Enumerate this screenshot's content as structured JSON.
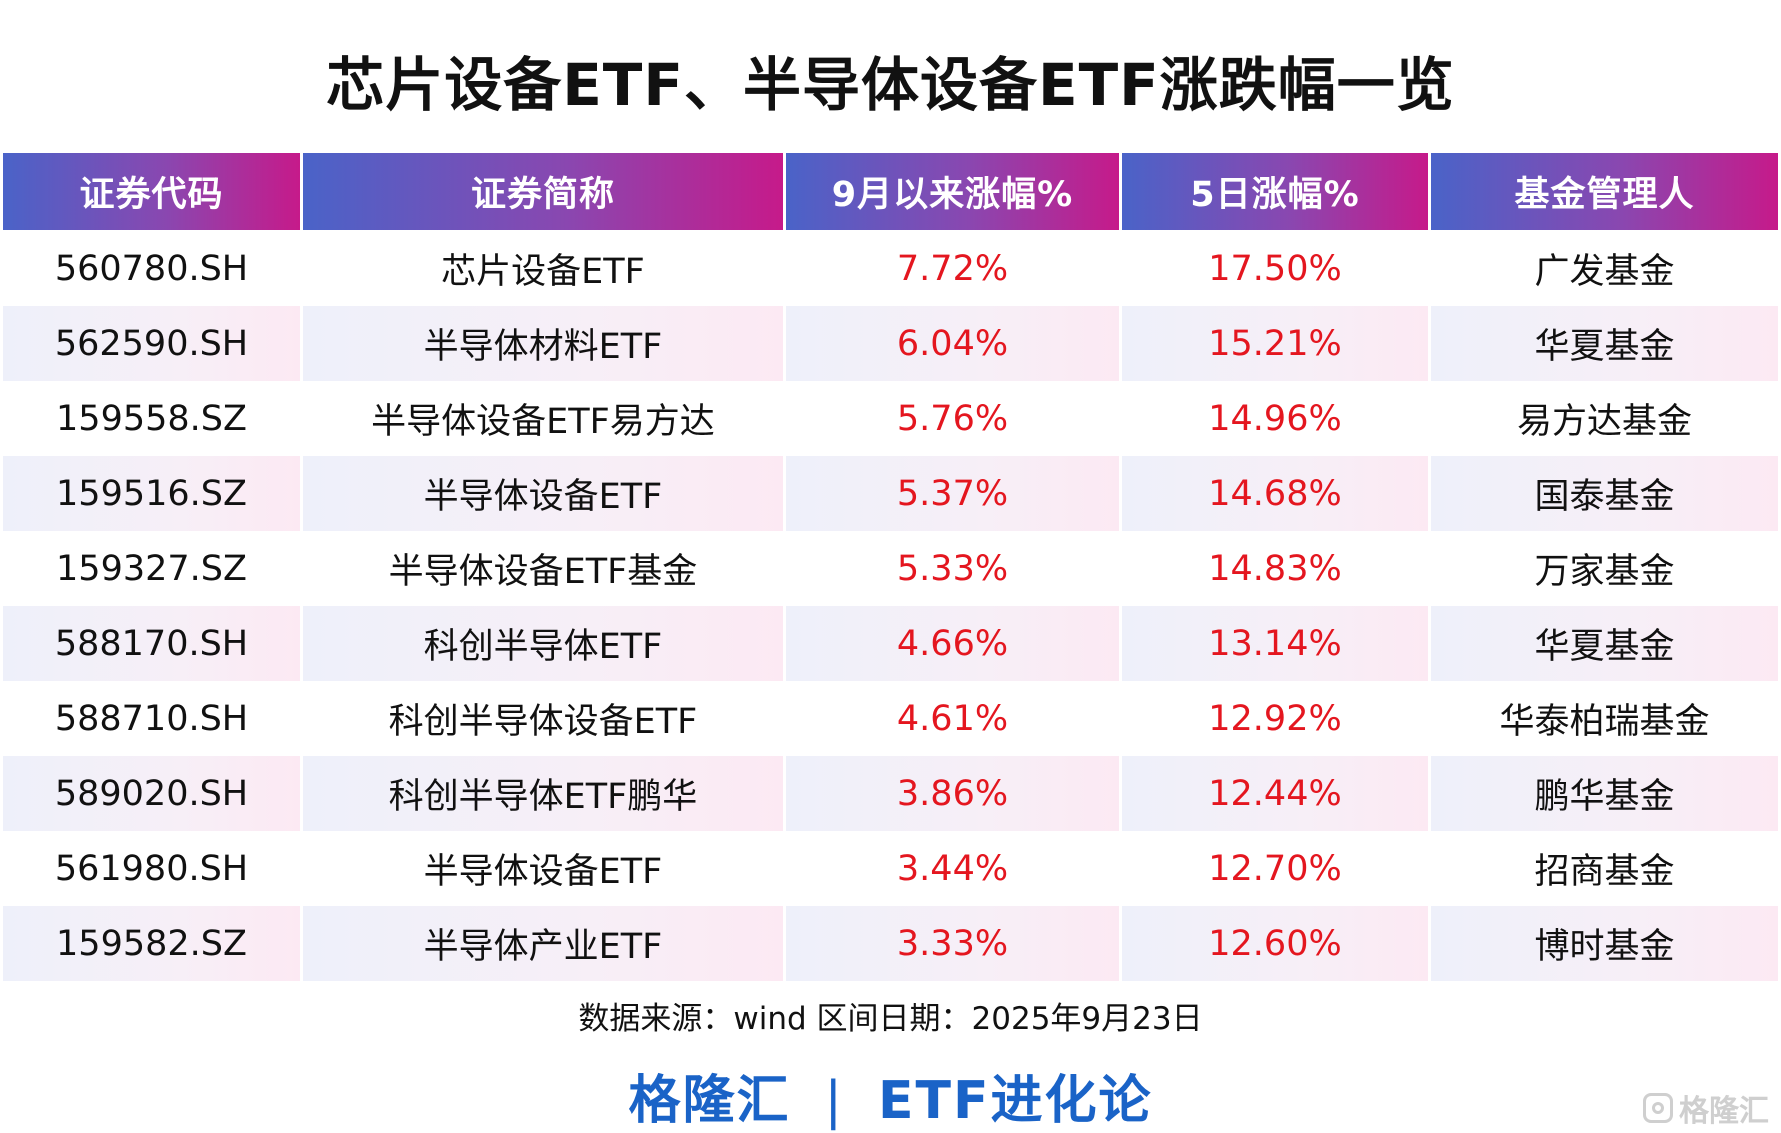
{
  "title": "芯片设备ETF、半导体设备ETF涨跌幅一览",
  "headers": [
    "证券代码",
    "证券简称",
    "9月以来涨幅%",
    "5日涨幅%",
    "基金管理人"
  ],
  "rows": [
    {
      "code": "560780.SH",
      "name": "芯片设备ETF",
      "mtd": "7.72%",
      "d5": "17.50%",
      "manager": "广发基金"
    },
    {
      "code": "562590.SH",
      "name": "半导体材料ETF",
      "mtd": "6.04%",
      "d5": "15.21%",
      "manager": "华夏基金"
    },
    {
      "code": "159558.SZ",
      "name": "半导体设备ETF易方达",
      "mtd": "5.76%",
      "d5": "14.96%",
      "manager": "易方达基金"
    },
    {
      "code": "159516.SZ",
      "name": "半导体设备ETF",
      "mtd": "5.37%",
      "d5": "14.68%",
      "manager": "国泰基金"
    },
    {
      "code": "159327.SZ",
      "name": "半导体设备ETF基金",
      "mtd": "5.33%",
      "d5": "14.83%",
      "manager": "万家基金"
    },
    {
      "code": "588170.SH",
      "name": "科创半导体ETF",
      "mtd": "4.66%",
      "d5": "13.14%",
      "manager": "华夏基金"
    },
    {
      "code": "588710.SH",
      "name": "科创半导体设备ETF",
      "mtd": "4.61%",
      "d5": "12.92%",
      "manager": "华泰柏瑞基金"
    },
    {
      "code": "589020.SH",
      "name": "科创半导体ETF鹏华",
      "mtd": "3.86%",
      "d5": "12.44%",
      "manager": "鹏华基金"
    },
    {
      "code": "561980.SH",
      "name": "半导体设备ETF",
      "mtd": "3.44%",
      "d5": "12.70%",
      "manager": "招商基金"
    },
    {
      "code": "159582.SZ",
      "name": "半导体产业ETF",
      "mtd": "3.33%",
      "d5": "12.60%",
      "manager": "博时基金"
    }
  ],
  "chart_data": {
    "type": "table",
    "title": "芯片设备ETF、半导体设备ETF涨跌幅一览",
    "columns": [
      "证券代码",
      "证券简称",
      "9月以来涨幅%",
      "5日涨幅%",
      "基金管理人"
    ],
    "cells": [
      [
        "560780.SH",
        "芯片设备ETF",
        7.72,
        17.5,
        "广发基金"
      ],
      [
        "562590.SH",
        "半导体材料ETF",
        6.04,
        15.21,
        "华夏基金"
      ],
      [
        "159558.SZ",
        "半导体设备ETF易方达",
        5.76,
        14.96,
        "易方达基金"
      ],
      [
        "159516.SZ",
        "半导体设备ETF",
        5.37,
        14.68,
        "国泰基金"
      ],
      [
        "159327.SZ",
        "半导体设备ETF基金",
        5.33,
        14.83,
        "万家基金"
      ],
      [
        "588170.SH",
        "科创半导体ETF",
        4.66,
        13.14,
        "华夏基金"
      ],
      [
        "588710.SH",
        "科创半导体设备ETF",
        4.61,
        12.92,
        "华泰柏瑞基金"
      ],
      [
        "589020.SH",
        "科创半导体ETF鹏华",
        3.86,
        12.44,
        "鹏华基金"
      ],
      [
        "561980.SH",
        "半导体设备ETF",
        3.44,
        12.7,
        "招商基金"
      ],
      [
        "159582.SZ",
        "半导体产业ETF",
        3.33,
        12.6,
        "博时基金"
      ]
    ]
  },
  "footer": {
    "source": "数据来源：wind   区间日期：2025年9月23日",
    "brand_left": "格隆汇",
    "brand_sep": "|",
    "brand_right": "ETF进化论"
  },
  "watermark": {
    "text": "格隆汇",
    "icon": "gelonghui-logo-icon"
  },
  "colors": {
    "header_start": "#4a63c8",
    "header_end": "#c61a8a",
    "value_red": "#e4161f",
    "brand_blue": "#1a63c7"
  }
}
